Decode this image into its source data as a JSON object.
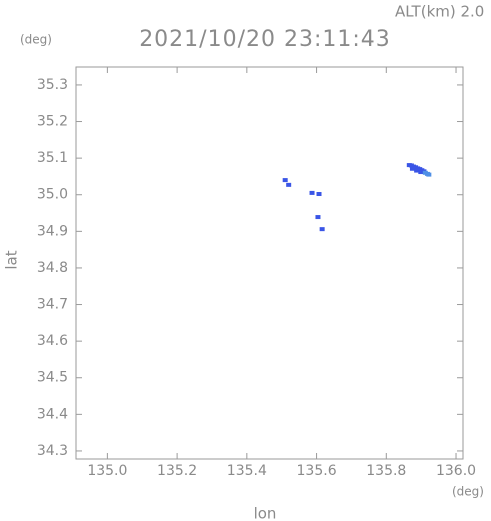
{
  "chart_data": {
    "type": "scatter",
    "title": "2021/10/20 23:11:43",
    "subtitle": "ALT(km) 2.0",
    "y_unit": "(deg)",
    "x_unit": "(deg)",
    "xlabel": "lon",
    "ylabel": "lat",
    "xlim": [
      134.91,
      136.02
    ],
    "ylim": [
      34.278,
      35.349
    ],
    "xticks": [
      {
        "value": 135.0,
        "label": "135.0"
      },
      135.2,
      135.4,
      135.6,
      135.8,
      {
        "value": 136.0,
        "label": "136.0"
      }
    ],
    "yticks": [
      35.3,
      35.2,
      35.1,
      {
        "value": 35.0,
        "label": "35.0"
      },
      34.9,
      34.8,
      34.7,
      34.6,
      34.5,
      34.4,
      34.3
    ],
    "series": [
      {
        "color": "#3a55e6",
        "x": [
          135.51,
          135.52,
          135.587,
          135.607,
          135.604,
          135.616,
          135.866,
          135.872,
          135.878,
          135.884,
          135.89,
          135.896,
          135.902,
          135.875,
          135.887,
          135.899,
          135.908
        ],
        "y": [
          35.04,
          35.027,
          35.005,
          35.002,
          34.939,
          34.906,
          35.081,
          35.08,
          35.077,
          35.075,
          35.072,
          35.07,
          35.067,
          35.071,
          35.066,
          35.062,
          35.064
        ]
      },
      {
        "color": "#4f8fe6",
        "x": [
          135.912,
          135.918,
          135.922
        ],
        "y": [
          35.06,
          35.057,
          35.055
        ]
      }
    ]
  }
}
